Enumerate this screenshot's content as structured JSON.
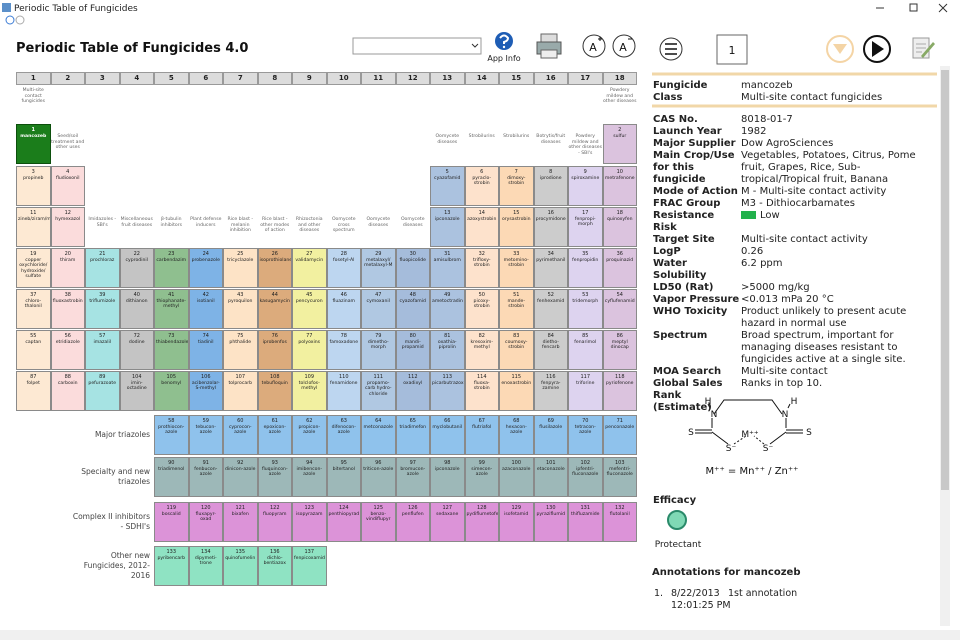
{
  "window": {
    "title": "Periodic Table of Fungicides"
  },
  "toolbar": {
    "title": "Periodic Table of Fungicides 4.0",
    "app_info": "App Info",
    "font_larger": "A",
    "font_smaller": "A",
    "page": "1"
  },
  "table": {
    "columns": [
      "1",
      "2",
      "3",
      "4",
      "5",
      "6",
      "7",
      "8",
      "9",
      "10",
      "11",
      "12",
      "13",
      "14",
      "15",
      "16",
      "17",
      "18"
    ],
    "top_notes": [
      "Multi-site contact fungicides",
      null,
      null,
      null,
      null,
      null,
      null,
      null,
      null,
      null,
      null,
      null,
      null,
      null,
      null,
      null,
      null,
      "Powdery mildew and other diseases"
    ],
    "rows": [
      [
        {
          "number": "1",
          "name": "mancozeb"
        },
        {
          "note": "Seed/soil treatment and other uses"
        },
        null,
        null,
        null,
        null,
        null,
        null,
        null,
        null,
        null,
        null,
        {
          "note": "Oomycete diseases"
        },
        {
          "note": "Strobilurins"
        },
        {
          "note": "Strobilurins"
        },
        {
          "note": "Botrytis/fruit diseases"
        },
        {
          "note": "Powdery mildew and other diseases - SBI's"
        },
        {
          "number": "2",
          "name": "sulfur"
        }
      ],
      [
        {
          "number": "3",
          "name": "propineb"
        },
        {
          "number": "4",
          "name": "fludioxonil"
        },
        null,
        null,
        null,
        null,
        null,
        null,
        null,
        null,
        null,
        null,
        {
          "number": "5",
          "name": "cyazofamid"
        },
        {
          "number": "6",
          "name": "pyraclo-strobin"
        },
        {
          "number": "7",
          "name": "dimoxy-strobin"
        },
        {
          "number": "8",
          "name": "iprodione"
        },
        {
          "number": "9",
          "name": "spiroxamine"
        },
        {
          "number": "10",
          "name": "metrafenone"
        }
      ],
      [
        {
          "number": "11",
          "name": "zineb/ziram/metiram"
        },
        {
          "number": "12",
          "name": "hymexazol"
        },
        {
          "note": "Imidazoles - SBI's"
        },
        {
          "note": "Miscellaneous fruit diseases"
        },
        {
          "note": "β-tubulin inhibitors"
        },
        {
          "note": "Plant defense inducers"
        },
        {
          "note": "Rice blast - melanin inhibition"
        },
        {
          "note": "Rice blast - other modes of action"
        },
        {
          "note": "Rhizoctonia and other diseases"
        },
        {
          "note": "Oomycete cross spectrum"
        },
        {
          "note": "Oomycete diseases"
        },
        {
          "note": "Oomycete diseases"
        },
        {
          "number": "13",
          "name": "ipconazole"
        },
        {
          "number": "14",
          "name": "azoxystrobin"
        },
        {
          "number": "15",
          "name": "orysastrobin"
        },
        {
          "number": "16",
          "name": "procymidone"
        },
        {
          "number": "17",
          "name": "fenpropi-morph"
        },
        {
          "number": "18",
          "name": "quinoxyfen"
        }
      ],
      [
        {
          "number": "19",
          "name": "copper oxychloride/ hydroxide/ sulfate"
        },
        {
          "number": "20",
          "name": "thiram"
        },
        {
          "number": "21",
          "name": "prochloraz"
        },
        {
          "number": "22",
          "name": "cyprodinil"
        },
        {
          "number": "23",
          "name": "carbendazim"
        },
        {
          "number": "24",
          "name": "probenazole"
        },
        {
          "number": "25",
          "name": "tricyclazole"
        },
        {
          "number": "26",
          "name": "isoprothiolane"
        },
        {
          "number": "27",
          "name": "validamycin"
        },
        {
          "number": "28",
          "name": "fosetyl-Al"
        },
        {
          "number": "29",
          "name": "metalaxyl/ metalaxyl-M"
        },
        {
          "number": "30",
          "name": "fluopicolide"
        },
        {
          "number": "31",
          "name": "amisulbrom"
        },
        {
          "number": "32",
          "name": "trifloxy-strobin"
        },
        {
          "number": "33",
          "name": "metomino-strobin"
        },
        {
          "number": "34",
          "name": "pyrimethanil"
        },
        {
          "number": "35",
          "name": "fenpropidin"
        },
        {
          "number": "36",
          "name": "proquinazid"
        }
      ],
      [
        {
          "number": "37",
          "name": "chloro-thalonil"
        },
        {
          "number": "38",
          "name": "fluoxastrobin"
        },
        {
          "number": "39",
          "name": "triflumizole"
        },
        {
          "number": "40",
          "name": "dithianon"
        },
        {
          "number": "41",
          "name": "thiophanate-methyl"
        },
        {
          "number": "42",
          "name": "isotianil"
        },
        {
          "number": "43",
          "name": "pyroquilon"
        },
        {
          "number": "44",
          "name": "kasugamycin"
        },
        {
          "number": "45",
          "name": "pencycuron"
        },
        {
          "number": "46",
          "name": "fluazinam"
        },
        {
          "number": "47",
          "name": "cymoxanil"
        },
        {
          "number": "48",
          "name": "cyazofamid"
        },
        {
          "number": "49",
          "name": "ametoctradin"
        },
        {
          "number": "50",
          "name": "picoxy-strobin"
        },
        {
          "number": "51",
          "name": "mande-strobin"
        },
        {
          "number": "52",
          "name": "fenhexamid"
        },
        {
          "number": "53",
          "name": "tridemorph"
        },
        {
          "number": "54",
          "name": "cyflufenamid"
        }
      ],
      [
        {
          "number": "55",
          "name": "captan"
        },
        {
          "number": "56",
          "name": "etridiazole"
        },
        {
          "number": "57",
          "name": "imazalil"
        },
        {
          "number": "72",
          "name": "dodine"
        },
        {
          "number": "73",
          "name": "thiabendazole"
        },
        {
          "number": "74",
          "name": "tiadinil"
        },
        {
          "number": "75",
          "name": "phthalide"
        },
        {
          "number": "76",
          "name": "iprobenfos"
        },
        {
          "number": "77",
          "name": "polyoxins"
        },
        {
          "number": "78",
          "name": "famoxadone"
        },
        {
          "number": "79",
          "name": "dimetho-morph"
        },
        {
          "number": "80",
          "name": "mandi-propamid"
        },
        {
          "number": "81",
          "name": "oxathia-piprolin"
        },
        {
          "number": "82",
          "name": "kresoxim-methyl"
        },
        {
          "number": "83",
          "name": "coumoxy-strobin"
        },
        {
          "number": "84",
          "name": "dietho-fencarb"
        },
        {
          "number": "85",
          "name": "fenarimol"
        },
        {
          "number": "86",
          "name": "meptyl dinocap"
        }
      ],
      [
        {
          "number": "87",
          "name": "folpet"
        },
        {
          "number": "88",
          "name": "carboxin"
        },
        {
          "number": "89",
          "name": "pefurazoate"
        },
        {
          "number": "104",
          "name": "imin-octadine"
        },
        {
          "number": "105",
          "name": "benomyl"
        },
        {
          "number": "106",
          "name": "acibenzolar-S-methyl"
        },
        {
          "number": "107",
          "name": "tolprocarb"
        },
        {
          "number": "108",
          "name": "tebufloquin"
        },
        {
          "number": "109",
          "name": "tolclofos-methyl"
        },
        {
          "number": "110",
          "name": "fenamidone"
        },
        {
          "number": "111",
          "name": "propamo-carb hydro-chloride"
        },
        {
          "number": "112",
          "name": "oxadixyl"
        },
        {
          "number": "113",
          "name": "picarbutrazox"
        },
        {
          "number": "114",
          "name": "fluoxa-strobin"
        },
        {
          "number": "115",
          "name": "enoxastrobin"
        },
        {
          "number": "116",
          "name": "fenpyra-zamine"
        },
        {
          "number": "117",
          "name": "triforine"
        },
        {
          "number": "118",
          "name": "pyriofenone"
        }
      ]
    ],
    "groups": [
      {
        "label": "Major triazoles",
        "cells": [
          {
            "number": "58",
            "name": "prothiocon-azole"
          },
          {
            "number": "59",
            "name": "tebucon-azole"
          },
          {
            "number": "60",
            "name": "cyprocon-azole"
          },
          {
            "number": "61",
            "name": "epoxicon-azole"
          },
          {
            "number": "62",
            "name": "propicon-azole"
          },
          {
            "number": "63",
            "name": "difenocon-azole"
          },
          {
            "number": "64",
            "name": "metconazole"
          },
          {
            "number": "65",
            "name": "triadimefon"
          },
          {
            "number": "66",
            "name": "myclobutanil"
          },
          {
            "number": "67",
            "name": "flutriafol"
          },
          {
            "number": "68",
            "name": "hexacon-azole"
          },
          {
            "number": "69",
            "name": "flusilazole"
          },
          {
            "number": "70",
            "name": "tetracon-azole"
          },
          {
            "number": "71",
            "name": "penconazole"
          }
        ]
      },
      {
        "label": "Specialty and new triazoles",
        "cells": [
          {
            "number": "90",
            "name": "triadimenol"
          },
          {
            "number": "91",
            "name": "fenbucon-azole"
          },
          {
            "number": "92",
            "name": "dinicon-azole"
          },
          {
            "number": "93",
            "name": "fluquincon-azole"
          },
          {
            "number": "94",
            "name": "imibencon-azole"
          },
          {
            "number": "95",
            "name": "bitertanol"
          },
          {
            "number": "96",
            "name": "triticon-azole"
          },
          {
            "number": "97",
            "name": "bromucon-azole"
          },
          {
            "number": "98",
            "name": "ipconazole"
          },
          {
            "number": "99",
            "name": "simecon-azole"
          },
          {
            "number": "100",
            "name": "azaconazole"
          },
          {
            "number": "101",
            "name": "etaconazole"
          },
          {
            "number": "102",
            "name": "ipfentri-fluconazole"
          },
          {
            "number": "103",
            "name": "mefentri-fluconazole"
          }
        ]
      },
      {
        "label": "Complex II inhibitors - SDHI's",
        "cells": [
          {
            "number": "119",
            "name": "boscalid"
          },
          {
            "number": "120",
            "name": "fluxapyr-oxad"
          },
          {
            "number": "121",
            "name": "bixafen"
          },
          {
            "number": "122",
            "name": "fluopyram"
          },
          {
            "number": "123",
            "name": "isopyrazam"
          },
          {
            "number": "124",
            "name": "penthiopyrad"
          },
          {
            "number": "125",
            "name": "benzo-vindiflupyr"
          },
          {
            "number": "126",
            "name": "penflufen"
          },
          {
            "number": "127",
            "name": "sedaxane"
          },
          {
            "number": "128",
            "name": "pydiflumetofen"
          },
          {
            "number": "129",
            "name": "isofetamid"
          },
          {
            "number": "130",
            "name": "pyraziflumid"
          },
          {
            "number": "131",
            "name": "thifluzamide"
          },
          {
            "number": "132",
            "name": "flutolanil"
          }
        ]
      },
      {
        "label": "Other new Fungicides, 2012-2016",
        "cells": [
          {
            "number": "133",
            "name": "pyribencarb"
          },
          {
            "number": "134",
            "name": "dipymeti-trone"
          },
          {
            "number": "135",
            "name": "quinofumelin"
          },
          {
            "number": "136",
            "name": "dichlo-bentiazox"
          },
          {
            "number": "137",
            "name": "fenpicoxamid"
          }
        ]
      }
    ]
  },
  "details": {
    "header": [
      {
        "label": "Fungicide",
        "value": "mancozeb"
      },
      {
        "label": "Class",
        "value": "Multi-site contact fungicides"
      }
    ],
    "fields": [
      {
        "label": "CAS No.",
        "value": "8018-01-7"
      },
      {
        "label": "Launch Year",
        "value": "1982"
      },
      {
        "label": "Major Supplier",
        "value": "Dow AgroSciences"
      },
      {
        "label": "Main Crop/Use for this fungicide",
        "value": "Vegetables, Potatoes, Citrus, Pome fruit, Grapes, Rice, Sub-tropical/Tropical fruit, Banana"
      },
      {
        "label": "Mode of Action",
        "value": "M - Multi-site contact activity"
      },
      {
        "label": "FRAC Group",
        "value": "M3 - Dithiocarbamates"
      },
      {
        "label": "Resistance Risk",
        "value": "Low"
      },
      {
        "label": "Target Site",
        "value": "Multi-site contact activity"
      },
      {
        "label": "LogP",
        "value": "0.26"
      },
      {
        "label": "Water Solubility",
        "value": "6.2 ppm"
      },
      {
        "label": "LD50 (Rat)",
        "value": ">5000 mg/kg"
      },
      {
        "label": "Vapor Pressure",
        "value": "<0.013 mPa 20 °C"
      },
      {
        "label": "WHO Toxicity",
        "value": "Product unlikely to present acute hazard in normal use"
      },
      {
        "label": "Spectrum",
        "value": "Broad spectrum, important for managing diseases resistant to fungicides active at a single site."
      },
      {
        "label": "MOA Search",
        "value": "Multi-site contact"
      },
      {
        "label": "Global Sales Rank (Estimate)",
        "value": "Ranks in top 10."
      }
    ],
    "structure": {
      "atoms": [
        "H",
        "N",
        "H",
        "N",
        "S",
        "S",
        "M⁺⁺",
        "S⁻",
        "S⁻"
      ],
      "formula": "M⁺⁺ = Mn⁺⁺ / Zn⁺⁺"
    },
    "efficacy": {
      "title": "Efficacy",
      "value": "Protectant"
    },
    "annotations": {
      "title": "Annotations for mancozeb",
      "items": [
        {
          "index": "1.",
          "date": "8/22/2013",
          "time": "12:01:25 PM",
          "text": "1st annotation"
        }
      ]
    }
  }
}
